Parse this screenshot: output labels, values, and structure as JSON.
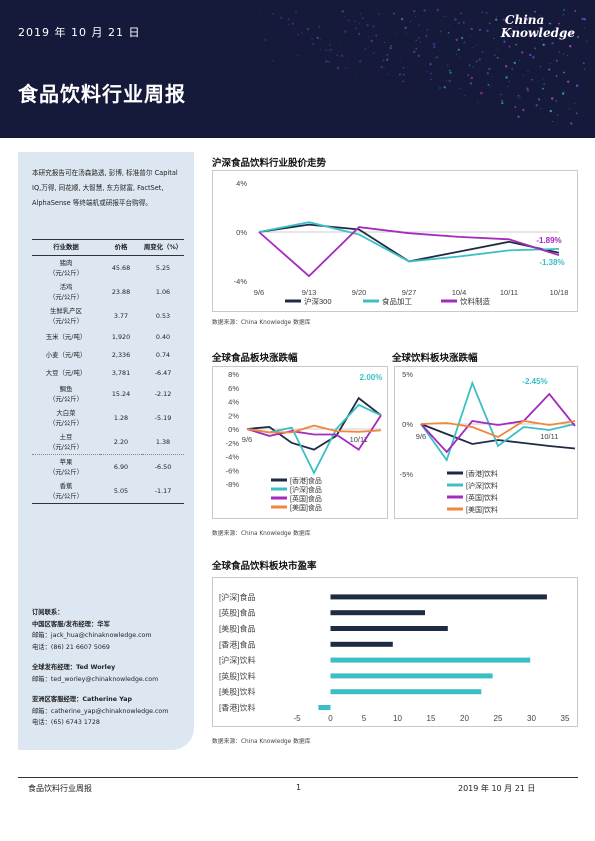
{
  "header": {
    "date": "2019 年 10 月 21 日",
    "title": "食品饮料行业周报",
    "logo_line1": "China",
    "logo_line2": "Knowledge"
  },
  "sidebar": {
    "intro": "本研究报告可在汤森路透, 彭博, 标准普尔 Capital IQ,万得, 同花顺, 大智慧, 东方财富, FactSet, AlphaSense 等终端机或研报平台购得。",
    "table": {
      "headers": [
        "行业数据",
        "价格",
        "周变化（%）"
      ],
      "rows": [
        {
          "name": "猪肉",
          "unit": "（元/公斤）",
          "price": "45.68",
          "change": "5.25"
        },
        {
          "name": "活鸡",
          "unit": "（元/公斤）",
          "price": "23.88",
          "change": "1.06"
        },
        {
          "name": "生鲜乳产区",
          "unit": "（元/公斤）",
          "price": "3.77",
          "change": "0.53"
        },
        {
          "name": "玉米（元/吨）",
          "unit": "",
          "price": "1,920",
          "change": "0.40"
        },
        {
          "name": "小麦（元/吨）",
          "unit": "",
          "price": "2,336",
          "change": "0.74"
        },
        {
          "name": "大豆（元/吨）",
          "unit": "",
          "price": "3,781",
          "change": "-6.47"
        },
        {
          "name": "鲷鱼",
          "unit": "（元/公斤）",
          "price": "15.24",
          "change": "-2.12"
        },
        {
          "name": "大白菜",
          "unit": "（元/公斤）",
          "price": "1.28",
          "change": "-5.19"
        },
        {
          "name": "土豆",
          "unit": "（元/公斤）",
          "price": "2.20",
          "change": "1.38"
        },
        {
          "name": "苹果",
          "unit": "（元/公斤）",
          "price": "6.90",
          "change": "-6.50"
        },
        {
          "name": "香蕉",
          "unit": "（元/公斤）",
          "price": "5.05",
          "change": "-1.17"
        }
      ]
    },
    "contacts": {
      "order_title": "订阅联系：",
      "cn_title": "中国区客服/发布经理：华军",
      "cn_email": "邮箱：jack_hua@chinaknowledge.com",
      "cn_phone": "电话：(86) 21 6607 5069",
      "global_title": "全球发布经理：Ted Worley",
      "global_email": "邮箱：ted_worley@chinaknowledge.com",
      "apac_title": "亚洲区客服经理：Catherine Yap",
      "apac_email": "邮箱：catherine_yap@chinaknowledge.com",
      "apac_phone": "电话：(65) 6743 1728"
    }
  },
  "sections": {
    "trend_title": "沪深食品饮料行业股价走势",
    "food_title": "全球食品板块涨跌幅",
    "bev_title": "全球饮料板块涨跌幅",
    "pe_title": "全球食品饮料板块市盈率",
    "source": "数据来源：China Knowledge 数据库"
  },
  "footer": {
    "left": "食品饮料行业周报",
    "page": "1",
    "right": "2019 年 10 月 21 日"
  },
  "colors": {
    "navy": "#1f2a44",
    "teal": "#3bbfc4",
    "purple": "#a52ac0",
    "orange": "#f0873a",
    "header_bg": "#161a3a",
    "panel_bg": "#dde7f1"
  },
  "chart_data": [
    {
      "id": "trend",
      "type": "line",
      "title": "沪深食品饮料行业股价走势",
      "categories": [
        "9/6",
        "9/13",
        "9/20",
        "9/27",
        "10/4",
        "10/11",
        "10/18"
      ],
      "ylim": [
        -4,
        4
      ],
      "yticks": [
        "4%",
        "0%",
        "-4%"
      ],
      "annotations": [
        "-1.89%",
        "-1.38%"
      ],
      "series": [
        {
          "name": "沪深300",
          "color": "#1f2a44",
          "values": [
            0,
            0.6,
            0.2,
            -2.4,
            -1.6,
            -0.8,
            -1.7
          ]
        },
        {
          "name": "食品加工",
          "color": "#3bbfc4",
          "values": [
            0,
            0.8,
            -0.2,
            -2.4,
            -2.0,
            -1.5,
            -1.38
          ]
        },
        {
          "name": "饮料制造",
          "color": "#a52ac0",
          "values": [
            0,
            -3.6,
            0.4,
            -0.1,
            -0.4,
            -0.6,
            -1.89
          ]
        }
      ],
      "legend": "bottom"
    },
    {
      "id": "food",
      "type": "line",
      "title": "全球食品板块涨跌幅",
      "categories": [
        "9/6",
        "9/13",
        "9/20",
        "9/27",
        "10/4",
        "10/11",
        "10/18"
      ],
      "ylim": [
        -8,
        8
      ],
      "yticks": [
        "8%",
        "6%",
        "4%",
        "2%",
        "0%",
        "-2%",
        "-4%",
        "-6%",
        "-8%"
      ],
      "xticks_shown": [
        "9/6",
        "10/11"
      ],
      "annotations": [
        "2.00%"
      ],
      "series": [
        {
          "name": "[香港]食品",
          "color": "#1f2a44",
          "values": [
            0,
            0.3,
            -2.0,
            -3.0,
            -1.0,
            4.5,
            2.0
          ]
        },
        {
          "name": "[沪深]食品",
          "color": "#3bbfc4",
          "values": [
            0,
            -0.5,
            0.2,
            -6.4,
            0.0,
            3.5,
            2.0
          ]
        },
        {
          "name": "[英国]食品",
          "color": "#a52ac0",
          "values": [
            0,
            -1.0,
            -0.3,
            -0.8,
            -0.8,
            -3.0,
            2.0
          ]
        },
        {
          "name": "[美国]食品",
          "color": "#f0873a",
          "values": [
            0,
            -0.5,
            -0.5,
            0.5,
            -0.3,
            -0.4,
            -0.2
          ]
        }
      ],
      "legend": "bottom-left"
    },
    {
      "id": "bev",
      "type": "line",
      "title": "全球饮料板块涨跌幅",
      "categories": [
        "9/6",
        "9/13",
        "9/20",
        "9/27",
        "10/4",
        "10/11",
        "10/18"
      ],
      "ylim": [
        -5,
        5
      ],
      "yticks": [
        "5%",
        "0%",
        "-5%"
      ],
      "xticks_shown": [
        "9/6",
        "10/11"
      ],
      "annotations": [
        "-2.45%"
      ],
      "series": [
        {
          "name": "[香港]饮料",
          "color": "#1f2a44",
          "values": [
            0,
            -1.0,
            -2.0,
            -1.6,
            -1.9,
            -2.2,
            -2.45
          ]
        },
        {
          "name": "[沪深]饮料",
          "color": "#3bbfc4",
          "values": [
            0,
            -3.6,
            4.1,
            -2.2,
            -0.3,
            -0.6,
            0.0
          ]
        },
        {
          "name": "[英国]饮料",
          "color": "#a52ac0",
          "values": [
            0,
            -2.8,
            0.3,
            -0.1,
            0.3,
            3.0,
            -0.2
          ]
        },
        {
          "name": "[美国]饮料",
          "color": "#f0873a",
          "values": [
            0,
            0.1,
            -0.3,
            -1.3,
            0.3,
            -0.1,
            0.3
          ]
        }
      ],
      "legend": "bottom-center"
    },
    {
      "id": "pe",
      "type": "bar",
      "orientation": "horizontal",
      "title": "全球食品饮料板块市盈率",
      "categories": [
        "[沪深]食品",
        "[英股]食品",
        "[美股]食品",
        "[香港]食品",
        "[沪深]饮料",
        "[英股]饮料",
        "[美股]饮料",
        "[香港]饮料"
      ],
      "values": [
        32.3,
        14.1,
        17.5,
        9.3,
        29.8,
        24.2,
        22.5,
        -1.8
      ],
      "colors": [
        "#1f2a44",
        "#1f2a44",
        "#1f2a44",
        "#1f2a44",
        "#3bbfc4",
        "#3bbfc4",
        "#3bbfc4",
        "#3bbfc4"
      ],
      "xlim": [
        -5,
        35
      ],
      "xticks": [
        "-5",
        "0",
        "5",
        "10",
        "15",
        "20",
        "25",
        "30",
        "35"
      ]
    }
  ]
}
